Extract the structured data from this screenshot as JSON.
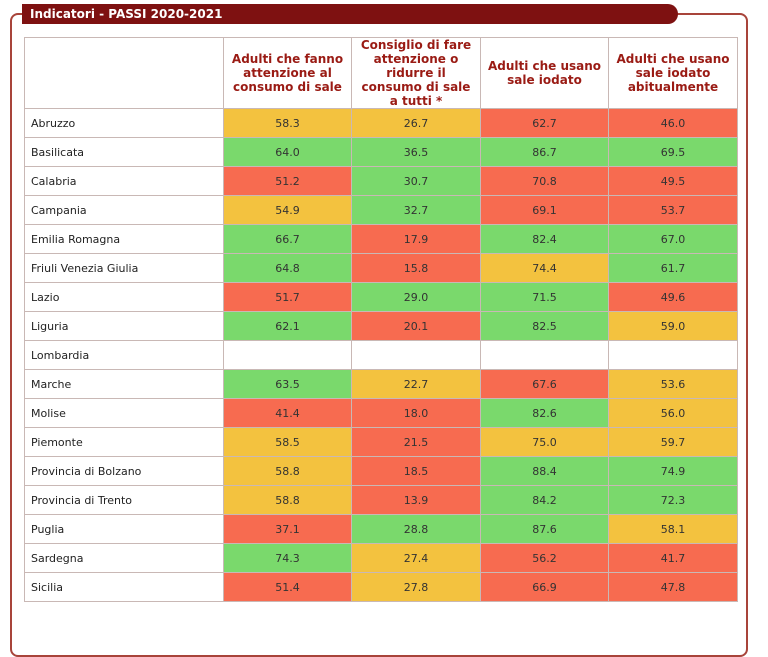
{
  "header": {
    "title": "Indicatori - PASSI 2020-2021"
  },
  "table": {
    "columns": [
      "Adulti che fanno attenzione al consumo di sale",
      "Consiglio di fare attenzione o ridurre il consumo di sale a tutti *",
      "Adulti che usano sale iodato",
      "Adulti che usano sale iodato abitualmente"
    ],
    "rows": [
      {
        "region": "Abruzzo",
        "values": [
          "58.3",
          "26.7",
          "62.7",
          "46.0"
        ],
        "colors": [
          "#f3c23f",
          "#f3c23f",
          "#f76b50",
          "#f76b50"
        ]
      },
      {
        "region": "Basilicata",
        "values": [
          "64.0",
          "36.5",
          "86.7",
          "69.5"
        ],
        "colors": [
          "#7ad96c",
          "#7ad96c",
          "#7ad96c",
          "#7ad96c"
        ]
      },
      {
        "region": "Calabria",
        "values": [
          "51.2",
          "30.7",
          "70.8",
          "49.5"
        ],
        "colors": [
          "#f76b50",
          "#7ad96c",
          "#f76b50",
          "#f76b50"
        ]
      },
      {
        "region": "Campania",
        "values": [
          "54.9",
          "32.7",
          "69.1",
          "53.7"
        ],
        "colors": [
          "#f3c23f",
          "#7ad96c",
          "#f76b50",
          "#f76b50"
        ]
      },
      {
        "region": "Emilia Romagna",
        "values": [
          "66.7",
          "17.9",
          "82.4",
          "67.0"
        ],
        "colors": [
          "#7ad96c",
          "#f76b50",
          "#7ad96c",
          "#7ad96c"
        ]
      },
      {
        "region": "Friuli Venezia Giulia",
        "values": [
          "64.8",
          "15.8",
          "74.4",
          "61.7"
        ],
        "colors": [
          "#7ad96c",
          "#f76b50",
          "#f3c23f",
          "#7ad96c"
        ]
      },
      {
        "region": "Lazio",
        "values": [
          "51.7",
          "29.0",
          "71.5",
          "49.6"
        ],
        "colors": [
          "#f76b50",
          "#7ad96c",
          "#7ad96c",
          "#f76b50"
        ]
      },
      {
        "region": "Liguria",
        "values": [
          "62.1",
          "20.1",
          "82.5",
          "59.0"
        ],
        "colors": [
          "#7ad96c",
          "#f76b50",
          "#7ad96c",
          "#f3c23f"
        ]
      },
      {
        "region": "Lombardia",
        "values": [
          null,
          null,
          null,
          null
        ],
        "colors": [
          null,
          null,
          null,
          null
        ]
      },
      {
        "region": "Marche",
        "values": [
          "63.5",
          "22.7",
          "67.6",
          "53.6"
        ],
        "colors": [
          "#7ad96c",
          "#f3c23f",
          "#f76b50",
          "#f3c23f"
        ]
      },
      {
        "region": "Molise",
        "values": [
          "41.4",
          "18.0",
          "82.6",
          "56.0"
        ],
        "colors": [
          "#f76b50",
          "#f76b50",
          "#7ad96c",
          "#f3c23f"
        ]
      },
      {
        "region": "Piemonte",
        "values": [
          "58.5",
          "21.5",
          "75.0",
          "59.7"
        ],
        "colors": [
          "#f3c23f",
          "#f76b50",
          "#f3c23f",
          "#f3c23f"
        ]
      },
      {
        "region": "Provincia di Bolzano",
        "values": [
          "58.8",
          "18.5",
          "88.4",
          "74.9"
        ],
        "colors": [
          "#f3c23f",
          "#f76b50",
          "#7ad96c",
          "#7ad96c"
        ]
      },
      {
        "region": "Provincia di Trento",
        "values": [
          "58.8",
          "13.9",
          "84.2",
          "72.3"
        ],
        "colors": [
          "#f3c23f",
          "#f76b50",
          "#7ad96c",
          "#7ad96c"
        ]
      },
      {
        "region": "Puglia",
        "values": [
          "37.1",
          "28.8",
          "87.6",
          "58.1"
        ],
        "colors": [
          "#f76b50",
          "#7ad96c",
          "#7ad96c",
          "#f3c23f"
        ]
      },
      {
        "region": "Sardegna",
        "values": [
          "74.3",
          "27.4",
          "56.2",
          "41.7"
        ],
        "colors": [
          "#7ad96c",
          "#f3c23f",
          "#f76b50",
          "#f76b50"
        ]
      },
      {
        "region": "Sicilia",
        "values": [
          "51.4",
          "27.8",
          "66.9",
          "47.8"
        ],
        "colors": [
          "#f76b50",
          "#f3c23f",
          "#f76b50",
          "#f76b50"
        ]
      }
    ]
  }
}
